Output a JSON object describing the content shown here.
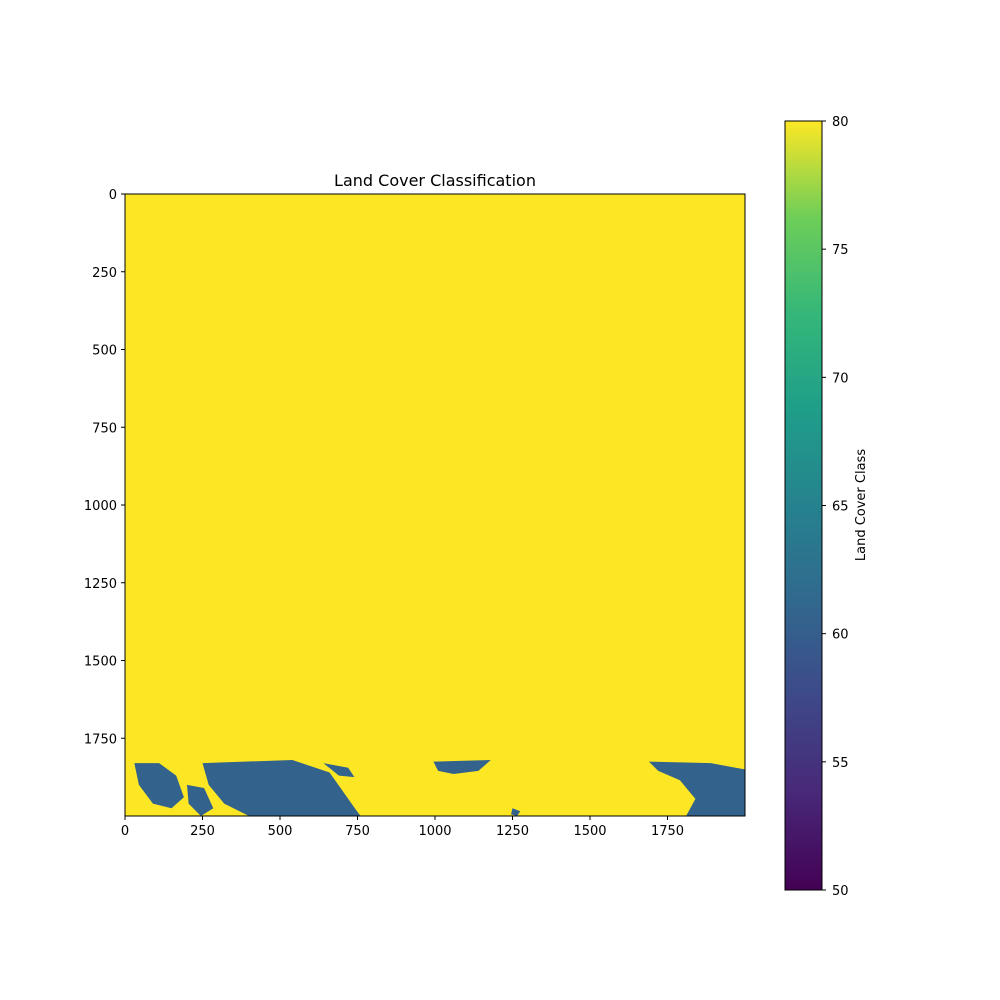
{
  "chart_data": {
    "type": "heatmap",
    "title": "Land Cover Classification",
    "xlabel": "",
    "ylabel": "",
    "x_ticks": [
      0,
      250,
      500,
      750,
      1000,
      1250,
      1500,
      1750
    ],
    "y_ticks": [
      0,
      250,
      500,
      750,
      1000,
      1250,
      1500,
      1750
    ],
    "xlim": [
      0,
      2000
    ],
    "ylim": [
      2000,
      0
    ],
    "y_axis_inverted": true,
    "colormap": "viridis",
    "colorbar": {
      "label": "Land Cover Class",
      "range": [
        50,
        80
      ],
      "ticks": [
        50,
        55,
        60,
        65,
        70,
        75,
        80
      ]
    },
    "classes": [
      {
        "value": 80,
        "color": "#fde725"
      },
      {
        "value": 60,
        "color": "#33638d"
      }
    ],
    "background_value": 80,
    "regions": [
      {
        "value": 60,
        "polygon": [
          [
            30,
            1830
          ],
          [
            110,
            1830
          ],
          [
            165,
            1870
          ],
          [
            190,
            1940
          ],
          [
            150,
            1975
          ],
          [
            90,
            1960
          ],
          [
            45,
            1900
          ]
        ]
      },
      {
        "value": 60,
        "polygon": [
          [
            250,
            1830
          ],
          [
            540,
            1820
          ],
          [
            660,
            1860
          ],
          [
            745,
            1980
          ],
          [
            760,
            2000
          ],
          [
            400,
            2000
          ],
          [
            320,
            1960
          ],
          [
            270,
            1900
          ]
        ]
      },
      {
        "value": 60,
        "polygon": [
          [
            200,
            1900
          ],
          [
            255,
            1910
          ],
          [
            285,
            1975
          ],
          [
            245,
            2000
          ],
          [
            205,
            1960
          ]
        ]
      },
      {
        "value": 60,
        "polygon": [
          [
            640,
            1830
          ],
          [
            720,
            1845
          ],
          [
            740,
            1875
          ],
          [
            690,
            1870
          ]
        ]
      },
      {
        "value": 60,
        "polygon": [
          [
            995,
            1825
          ],
          [
            1180,
            1820
          ],
          [
            1140,
            1855
          ],
          [
            1060,
            1865
          ],
          [
            1010,
            1855
          ]
        ]
      },
      {
        "value": 60,
        "polygon": [
          [
            1690,
            1825
          ],
          [
            1890,
            1830
          ],
          [
            1970,
            1845
          ],
          [
            2000,
            1850
          ],
          [
            2000,
            2000
          ],
          [
            1810,
            2000
          ],
          [
            1840,
            1945
          ],
          [
            1790,
            1885
          ],
          [
            1720,
            1855
          ]
        ]
      },
      {
        "value": 60,
        "polygon": [
          [
            1250,
            1975
          ],
          [
            1275,
            1985
          ],
          [
            1265,
            2000
          ],
          [
            1245,
            1995
          ]
        ]
      }
    ]
  }
}
